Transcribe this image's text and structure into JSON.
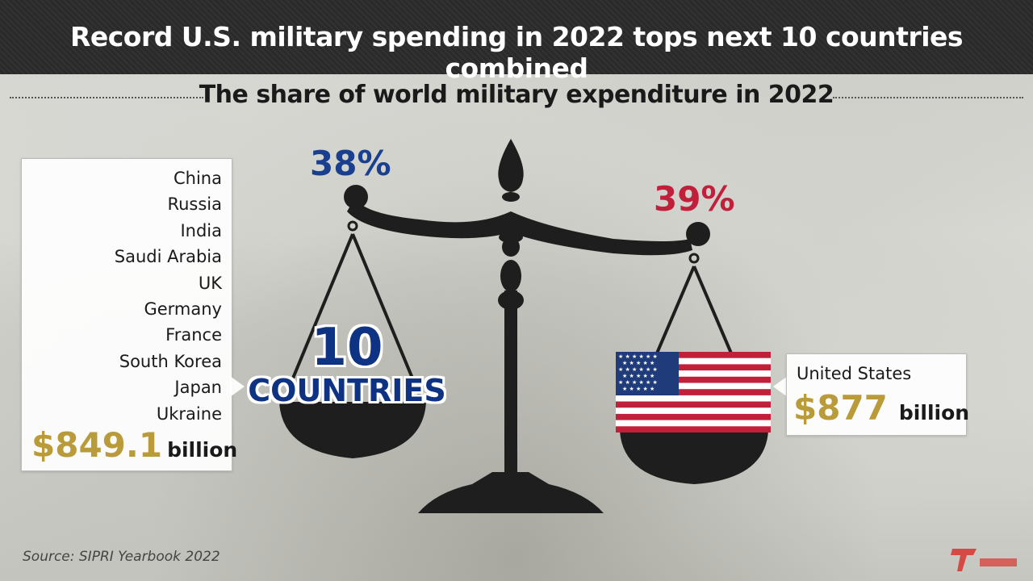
{
  "header": {
    "title": "Record U.S. military spending in 2022 tops next 10 countries combined",
    "subtitle": "The share of world military expenditure in 2022"
  },
  "left_side": {
    "share": "38%",
    "countries": [
      "China",
      "Russia",
      "India",
      "Saudi Arabia",
      "UK",
      "Germany",
      "France",
      "South Korea",
      "Japan",
      "Ukraine"
    ],
    "amount": "$849.1",
    "unit": "billion",
    "pan_label_number": "10",
    "pan_label_word": "COUNTRIES",
    "color": "#1a3f8f"
  },
  "right_side": {
    "share": "39%",
    "country": "United States",
    "amount": "$877",
    "unit": "billion",
    "color": "#c1203b"
  },
  "footer": {
    "source": "Source: SIPRI Yearbook 2022"
  },
  "icons": {
    "scale": "balance-scale-icon",
    "flag": "us-flag-icon",
    "logo": "broadcaster-logo"
  },
  "colors": {
    "title_bar": "#2a2a2a",
    "amount_gold": "#b99b3a",
    "scale": "#1e1e1e"
  }
}
